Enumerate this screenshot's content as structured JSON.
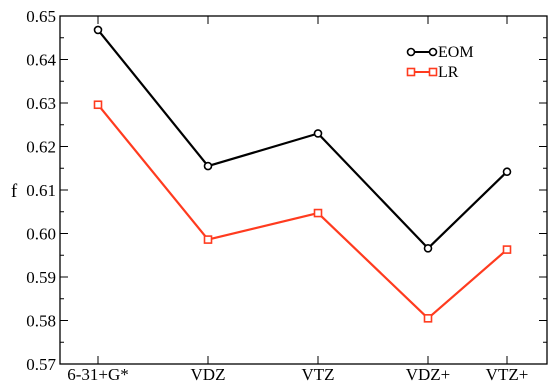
{
  "chart_data": {
    "type": "line",
    "title": "",
    "xlabel": "",
    "ylabel": "f",
    "categories": [
      "6-31+G*",
      "VDZ",
      "VTZ",
      "VDZ+",
      "VTZ+"
    ],
    "y_ticks": [
      "0.57",
      "0.58",
      "0.59",
      "0.60",
      "0.61",
      "0.62",
      "0.63",
      "0.64",
      "0.65"
    ],
    "ylim": [
      0.57,
      0.65
    ],
    "grid": false,
    "legend_position": "top-right",
    "series": [
      {
        "name": "EOM",
        "color": "#000000",
        "marker": "circle",
        "values": [
          0.6468,
          0.6155,
          0.623,
          0.5966,
          0.6142
        ]
      },
      {
        "name": "LR",
        "color": "#ff3b1f",
        "marker": "square",
        "values": [
          0.6296,
          0.5986,
          0.6047,
          0.5805,
          0.5963
        ]
      }
    ]
  }
}
